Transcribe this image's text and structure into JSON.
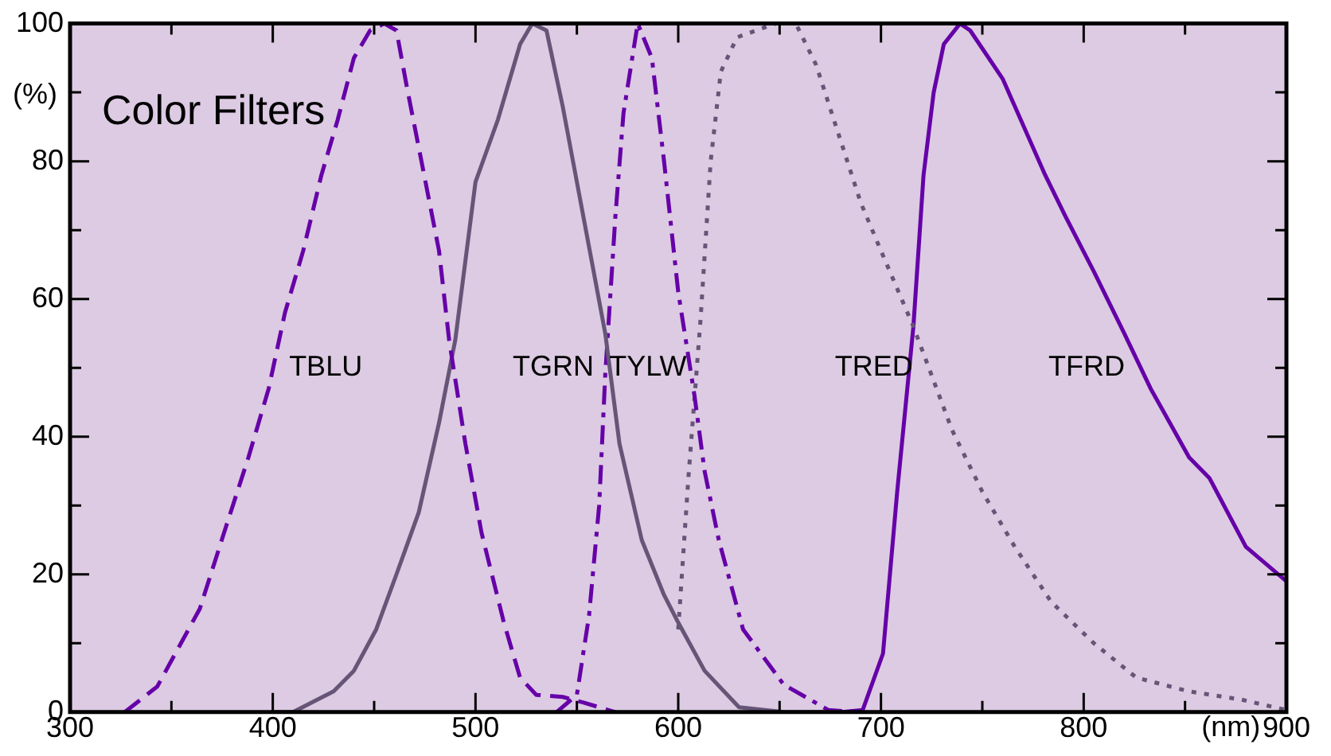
{
  "chart_data": {
    "type": "line",
    "title": "Color Filters",
    "xlabel": "(nm)",
    "ylabel": "(%)",
    "xlim": [
      300,
      900
    ],
    "ylim": [
      0,
      100
    ],
    "xticks": [
      300,
      {
        "value": 350,
        "label": null
      },
      400,
      {
        "value": 450,
        "label": null
      },
      500,
      {
        "value": 550,
        "label": null
      },
      600,
      {
        "value": 650,
        "label": null
      },
      700,
      {
        "value": 750,
        "label": null
      },
      800,
      {
        "value": 850,
        "label": null
      },
      900
    ],
    "yticks": [
      0,
      {
        "value": 10,
        "label": null
      },
      20,
      {
        "value": 30,
        "label": null
      },
      40,
      {
        "value": 50,
        "label": null
      },
      60,
      {
        "value": 70,
        "label": null
      },
      80,
      {
        "value": 90,
        "label": null
      },
      100
    ],
    "marker": "none",
    "series": [
      {
        "name": "TBLU",
        "color": "#6600a8",
        "line_style": "dashed",
        "x": [
          327,
          343,
          364,
          377,
          388,
          398,
          406,
          415,
          424,
          432,
          440,
          448,
          455,
          461,
          466,
          474,
          482,
          487,
          495,
          503,
          514,
          522,
          530,
          543,
          553,
          569
        ],
        "values": [
          0,
          3.7,
          15,
          27,
          37,
          47,
          58,
          67,
          78,
          86,
          95,
          99,
          100,
          99,
          91,
          79,
          67,
          54,
          39,
          26,
          13,
          5,
          2.5,
          2.2,
          1.4,
          0
        ]
      },
      {
        "name": "TGRN",
        "color": "#665577",
        "line_style": "solid",
        "x": [
          401,
          410,
          430,
          440,
          451,
          461,
          472,
          482,
          490,
          500,
          511,
          522,
          528,
          535,
          543,
          550,
          564,
          571,
          582,
          593,
          600,
          613,
          630,
          652,
          680
        ],
        "values": [
          0,
          0,
          3,
          6,
          12,
          20,
          29,
          42,
          54,
          77,
          86,
          97,
          100,
          99,
          88,
          77,
          55,
          39,
          25,
          17,
          13,
          6,
          0.7,
          0,
          0
        ]
      },
      {
        "name": "TYLW",
        "color": "#6600a8",
        "line_style": "dashdot",
        "x": [
          540,
          550,
          556,
          561,
          564,
          569,
          573,
          580,
          587,
          593,
          600,
          608,
          613,
          620,
          632,
          652,
          674,
          689
        ],
        "values": [
          0,
          2.5,
          14,
          30,
          49,
          72,
          87,
          100,
          95,
          80,
          61,
          46,
          35,
          25,
          12,
          4,
          0.3,
          0
        ]
      },
      {
        "name": "TRED",
        "color": "#665577",
        "line_style": "dotted",
        "x": [
          600,
          605,
          611,
          616,
          621,
          629,
          648,
          658,
          668,
          679,
          690,
          700,
          716,
          735,
          750,
          766,
          784,
          805,
          826,
          852,
          878,
          900
        ],
        "values": [
          12,
          34,
          57,
          80,
          93,
          98,
          100,
          100,
          94,
          84,
          74,
          67,
          56,
          41,
          32,
          24,
          16,
          10,
          5,
          3,
          1.8,
          0.3
        ]
      },
      {
        "name": "TFRD",
        "color": "#6600a8",
        "line_style": "solid",
        "x": [
          681,
          691,
          701,
          708,
          716,
          721,
          726,
          731,
          739,
          744,
          760,
          781,
          791,
          805,
          820,
          833,
          852,
          862,
          880,
          900
        ],
        "values": [
          0,
          0.3,
          8.5,
          32,
          56,
          78,
          90,
          97,
          100,
          99,
          92,
          78,
          72,
          64,
          55,
          47,
          37,
          34,
          24,
          19
        ]
      }
    ]
  }
}
